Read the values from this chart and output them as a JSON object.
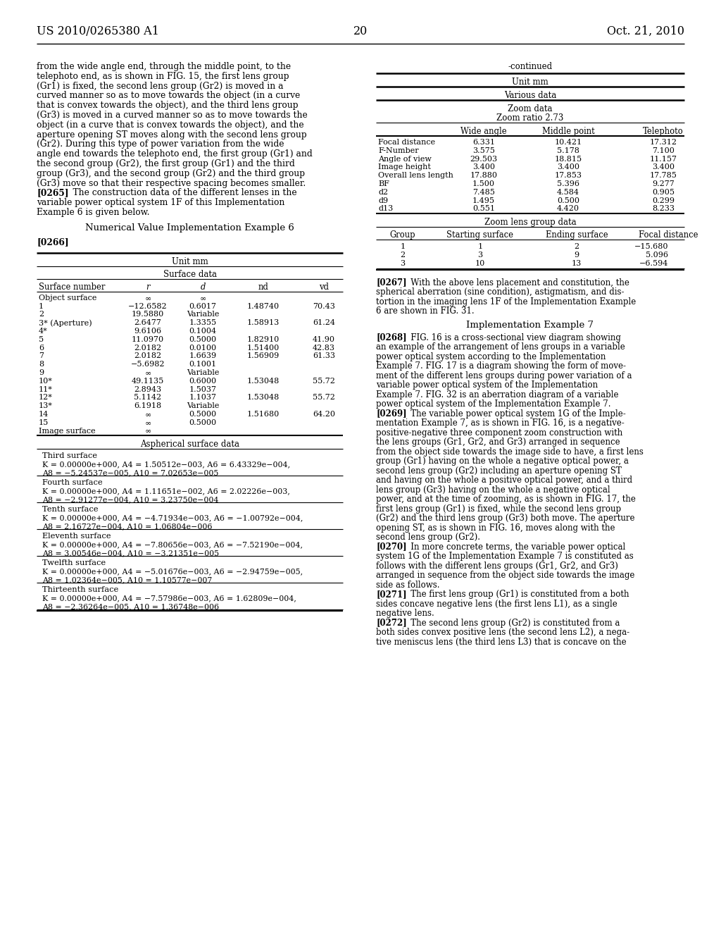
{
  "page_number": "20",
  "patent_left": "US 2010/0265380 A1",
  "patent_right": "Oct. 21, 2010",
  "left_body_text": [
    "from the wide angle end, through the middle point, to the",
    "telephoto end, as is shown in FIG. 15, the first lens group",
    "(Gr1) is fixed, the second lens group (Gr2) is moved in a",
    "curved manner so as to move towards the object (in a curve",
    "that is convex towards the object), and the third lens group",
    "(Gr3) is moved in a curved manner so as to move towards the",
    "object (in a curve that is convex towards the object), and the",
    "aperture opening ST moves along with the second lens group",
    "(Gr2). During this type of power variation from the wide",
    "angle end towards the telephoto end, the first group (Gr1) and",
    "the second group (Gr2), the first group (Gr1) and the third",
    "group (Gr3), and the second group (Gr2) and the third group",
    "(Gr3) move so that their respective spacing becomes smaller.",
    "variable power optical system 1F of this Implementation",
    "Example 6 is given below."
  ],
  "para_0265_bold": "[0265]",
  "para_0265_text": "    The construction data of the different lenses in the",
  "center_title": "Numerical Value Implementation Example 6",
  "paragraph_0266": "[0266]",
  "left_table_title": "Unit mm",
  "left_table_subtitle": "Surface data",
  "left_table_headers": [
    "Surface number",
    "r",
    "d",
    "nd",
    "vd"
  ],
  "left_table_rows": [
    [
      "Object surface",
      "∞",
      "∞",
      "",
      ""
    ],
    [
      "1",
      "−12.6582",
      "0.6017",
      "1.48740",
      "70.43"
    ],
    [
      "2",
      "19.5880",
      "Variable",
      "",
      ""
    ],
    [
      "3* (Aperture)",
      "2.6477",
      "1.3355",
      "1.58913",
      "61.24"
    ],
    [
      "4*",
      "9.6106",
      "0.1004",
      "",
      ""
    ],
    [
      "5",
      "11.0970",
      "0.5000",
      "1.82910",
      "41.90"
    ],
    [
      "6",
      "2.0182",
      "0.0100",
      "1.51400",
      "42.83"
    ],
    [
      "7",
      "2.0182",
      "1.6639",
      "1.56909",
      "61.33"
    ],
    [
      "8",
      "−5.6982",
      "0.1001",
      "",
      ""
    ],
    [
      "9",
      "∞",
      "Variable",
      "",
      ""
    ],
    [
      "10*",
      "49.1135",
      "0.6000",
      "1.53048",
      "55.72"
    ],
    [
      "11*",
      "2.8943",
      "1.5037",
      "",
      ""
    ],
    [
      "12*",
      "5.1142",
      "1.1037",
      "1.53048",
      "55.72"
    ],
    [
      "13*",
      "6.1918",
      "Variable",
      "",
      ""
    ],
    [
      "14",
      "∞",
      "0.5000",
      "1.51680",
      "64.20"
    ],
    [
      "15",
      "∞",
      "0.5000",
      "",
      ""
    ],
    [
      "Image surface",
      "∞",
      "",
      "",
      ""
    ]
  ],
  "aspherical_title": "Aspherical surface data",
  "aspherical_sections": [
    {
      "surface_name": "Third surface",
      "line1": "K = 0.00000e+000, A4 = 1.50512e−003, A6 = 6.43329e−004,",
      "line2": "A8 = −5.24537e−005, A10 = 7.02653e−005"
    },
    {
      "surface_name": "Fourth surface",
      "line1": "K = 0.00000e+000, A4 = 1.11651e−002, A6 = 2.02226e−003,",
      "line2": "A8 = −2.91277e−004, A10 = 3.23750e−004"
    },
    {
      "surface_name": "Tenth surface",
      "line1": "K = 0.00000e+000, A4 = −4.71934e−003, A6 = −1.00792e−004,",
      "line2": "A8 = 2.16727e−004, A10 = 1.06804e−006"
    },
    {
      "surface_name": "Eleventh surface",
      "line1": "K = 0.00000e+000, A4 = −7.80656e−003, A6 = −7.52190e−004,",
      "line2": "A8 = 3.00546e−004, A10 = −3.21351e−005"
    },
    {
      "surface_name": "Twelfth surface",
      "line1": "K = 0.00000e+000, A4 = −5.01676e−003, A6 = −2.94759e−005,",
      "line2": "A8 = 1.02364e−005, A10 = 1.10577e−007"
    },
    {
      "surface_name": "Thirteenth surface",
      "line1": "K = 0.00000e+000, A4 = −7.57986e−003, A6 = 1.62809e−004,",
      "line2": "A8 = −2.36264e−005, A10 = 1.36748e−006"
    }
  ],
  "right_continued": "-continued",
  "right_unit": "Unit mm",
  "right_various": "Various data",
  "right_zoom_data": "Zoom data",
  "right_zoom_ratio": "Zoom ratio 2.73",
  "right_col_headers": [
    "",
    "Wide angle",
    "Middle point",
    "Telephoto"
  ],
  "right_table_rows": [
    [
      "Focal distance",
      "6.331",
      "10.421",
      "17.312"
    ],
    [
      "F-Number",
      "3.575",
      "5.178",
      "7.100"
    ],
    [
      "Angle of view",
      "29.503",
      "18.815",
      "11.157"
    ],
    [
      "Image height",
      "3.400",
      "3.400",
      "3.400"
    ],
    [
      "Overall lens length",
      "17.880",
      "17.853",
      "17.785"
    ],
    [
      "BF",
      "1.500",
      "5.396",
      "9.277"
    ],
    [
      "d2",
      "7.485",
      "4.584",
      "0.905"
    ],
    [
      "d9",
      "1.495",
      "0.500",
      "0.299"
    ],
    [
      "d13",
      "0.551",
      "4.420",
      "8.233"
    ]
  ],
  "right_zoom_group_title": "Zoom lens group data",
  "right_zoom_group_headers": [
    "Group",
    "Starting surface",
    "Ending surface",
    "Focal distance"
  ],
  "right_zoom_group_rows": [
    [
      "1",
      "1",
      "2",
      "−15.680"
    ],
    [
      "2",
      "3",
      "9",
      "5.096"
    ],
    [
      "3",
      "10",
      "13",
      "−6.594"
    ]
  ],
  "paragraphs_right": [
    {
      "tag": "[0267]",
      "lines": [
        "   With the above lens placement and constitution, the",
        "spherical aberration (sine condition), astigmatism, and dis-",
        "tortion in the imaging lens 1F of the Implementation Example",
        "6 are shown in FIG. 31."
      ]
    },
    {
      "tag": "HEADING",
      "lines": [
        "Implementation Example 7"
      ]
    },
    {
      "tag": "[0268]",
      "lines": [
        "   FIG. 16 is a cross-sectional view diagram showing",
        "an example of the arrangement of lens groups in a variable",
        "power optical system according to the Implementation",
        "Example 7. FIG. 17 is a diagram showing the form of move-",
        "ment of the different lens groups during power variation of a",
        "variable power optical system of the Implementation",
        "Example 7. FIG. 32 is an aberration diagram of a variable",
        "power optical system of the Implementation Example 7."
      ]
    },
    {
      "tag": "[0269]",
      "lines": [
        "   The variable power optical system 1G of the Imple-",
        "mentation Example 7, as is shown in FIG. 16, is a negative-",
        "positive-negative three component zoom construction with",
        "the lens groups (Gr1, Gr2, and Gr3) arranged in sequence",
        "from the object side towards the image side to have, a first lens",
        "group (Gr1) having on the whole a negative optical power, a",
        "second lens group (Gr2) including an aperture opening ST",
        "and having on the whole a positive optical power, and a third",
        "lens group (Gr3) having on the whole a negative optical",
        "power, and at the time of zooming, as is shown in FIG. 17, the",
        "first lens group (Gr1) is fixed, while the second lens group",
        "(Gr2) and the third lens group (Gr3) both move. The aperture",
        "opening ST, as is shown in FIG. 16, moves along with the",
        "second lens group (Gr2)."
      ]
    },
    {
      "tag": "[0270]",
      "lines": [
        "   In more concrete terms, the variable power optical",
        "system 1G of the Implementation Example 7 is constituted as",
        "follows with the different lens groups (Gr1, Gr2, and Gr3)",
        "arranged in sequence from the object side towards the image",
        "side as follows."
      ]
    },
    {
      "tag": "[0271]",
      "lines": [
        "   The first lens group (Gr1) is constituted from a both",
        "sides concave negative lens (the first lens L1), as a single",
        "negative lens."
      ]
    },
    {
      "tag": "[0272]",
      "lines": [
        "   The second lens group (Gr2) is constituted from a",
        "both sides convex positive lens (the second lens L2), a nega-",
        "tive meniscus lens (the third lens L3) that is concave on the"
      ]
    }
  ]
}
